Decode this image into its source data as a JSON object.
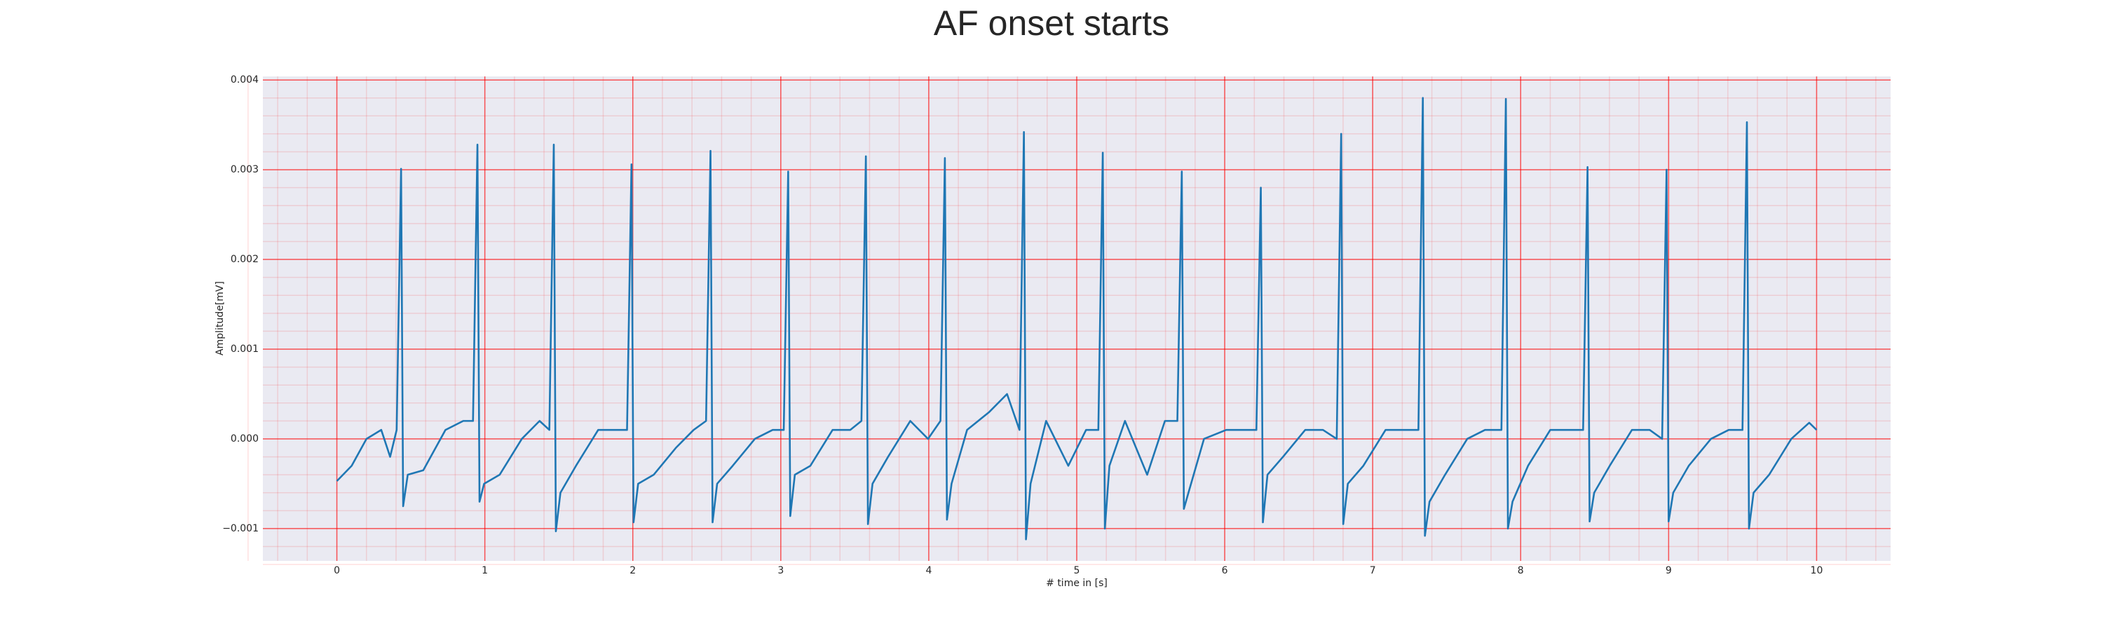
{
  "chart_data": {
    "type": "line",
    "title": "AF onset starts",
    "x_label": "# time in [s]",
    "y_label": "Amplitude[mV]",
    "x": [
      0,
      0.1,
      0.2,
      0.3,
      0.36,
      0.404,
      0.434,
      0.448,
      0.479,
      0.584,
      0.734,
      0.854,
      0.92,
      0.95,
      0.964,
      0.995,
      1.1,
      1.25,
      1.37,
      1.436,
      1.466,
      1.48,
      1.511,
      1.616,
      1.766,
      1.886,
      1.961,
      1.991,
      2.005,
      2.036,
      2.141,
      2.291,
      2.411,
      2.495,
      2.525,
      2.539,
      2.57,
      2.675,
      2.825,
      2.945,
      3.02,
      3.05,
      3.064,
      3.095,
      3.2,
      3.35,
      3.47,
      3.545,
      3.575,
      3.589,
      3.62,
      3.725,
      3.875,
      3.995,
      4.079,
      4.109,
      4.123,
      4.154,
      4.259,
      4.409,
      4.529,
      4.613,
      4.643,
      4.657,
      4.688,
      4.793,
      4.943,
      5.063,
      5.146,
      5.176,
      5.19,
      5.221,
      5.326,
      5.476,
      5.596,
      5.68,
      5.71,
      5.724,
      5.755,
      5.86,
      6.01,
      6.13,
      6.214,
      6.244,
      6.258,
      6.289,
      6.394,
      6.544,
      6.664,
      6.757,
      6.787,
      6.801,
      6.832,
      6.937,
      7.087,
      7.207,
      7.309,
      7.339,
      7.353,
      7.384,
      7.489,
      7.639,
      7.759,
      7.87,
      7.9,
      7.914,
      7.945,
      8.05,
      8.2,
      8.32,
      8.422,
      8.452,
      8.466,
      8.497,
      8.602,
      8.752,
      8.872,
      8.956,
      8.986,
      9.0,
      9.031,
      9.136,
      9.286,
      9.406,
      9.499,
      9.529,
      9.543,
      9.574,
      9.679,
      9.829,
      9.95,
      10.0
    ],
    "values": [
      -0.00047,
      -0.0003,
      0.0,
      0.0001,
      -0.0002,
      0.0001,
      0.00301,
      -0.00075,
      -0.0004,
      -0.00035,
      0.0001,
      0.0002,
      0.0002,
      0.00328,
      -0.0007,
      -0.0005,
      -0.0004,
      0.0,
      0.0002,
      0.0001,
      0.00328,
      -0.00103,
      -0.0006,
      -0.0003,
      0.0001,
      0.0001,
      0.0001,
      0.00306,
      -0.00093,
      -0.0005,
      -0.0004,
      -0.0001,
      0.0001,
      0.0002,
      0.00321,
      -0.00093,
      -0.0005,
      -0.0003,
      0.0,
      0.0001,
      0.0001,
      0.00298,
      -0.00086,
      -0.0004,
      -0.0003,
      0.0001,
      0.0001,
      0.0002,
      0.00315,
      -0.00095,
      -0.0005,
      -0.0002,
      0.0002,
      0.0,
      0.0002,
      0.00313,
      -0.0009,
      -0.0005,
      0.0001,
      0.0003,
      0.0005,
      0.0001,
      0.00342,
      -0.00112,
      -0.0005,
      0.0002,
      -0.0003,
      0.0001,
      0.0001,
      0.00319,
      -0.001,
      -0.0003,
      0.0002,
      -0.0004,
      0.0002,
      0.0002,
      0.00298,
      -0.00078,
      -0.0006,
      0.0,
      0.0001,
      0.0001,
      0.0001,
      0.0028,
      -0.00093,
      -0.0004,
      -0.0002,
      0.0001,
      0.0001,
      0.0,
      0.0034,
      -0.00095,
      -0.0005,
      -0.0003,
      0.0001,
      0.0001,
      0.0001,
      0.0038,
      -0.00108,
      -0.0007,
      -0.0004,
      0.0,
      0.0001,
      0.0001,
      0.00379,
      -0.001,
      -0.0007,
      -0.0003,
      0.0001,
      0.0001,
      0.0001,
      0.00303,
      -0.00092,
      -0.0006,
      -0.0003,
      0.0001,
      0.0001,
      0.0,
      0.003,
      -0.00092,
      -0.0006,
      -0.0003,
      0.0,
      0.0001,
      0.0001,
      0.00353,
      -0.001,
      -0.0006,
      -0.0004,
      0.0,
      0.00018,
      0.0001
    ],
    "color": "#1f77b4",
    "xlim": [
      -0.5,
      10.5
    ],
    "xticks": [
      0,
      1,
      2,
      3,
      4,
      5,
      6,
      7,
      8,
      9,
      10
    ],
    "ylim": [
      -0.00136,
      0.00404
    ],
    "yticks": [
      {
        "value": -0.001,
        "label": "−0.001"
      },
      {
        "value": 0,
        "label": "0.000"
      },
      {
        "value": 0.001,
        "label": "0.001"
      },
      {
        "value": 0.002,
        "label": "0.002"
      },
      {
        "value": 0.003,
        "label": "0.003"
      },
      {
        "value": 0.004,
        "label": "0.004"
      }
    ],
    "grid": true,
    "minor_grid": true,
    "grid_color": "#ff0000",
    "background": "#eaeaf2"
  }
}
